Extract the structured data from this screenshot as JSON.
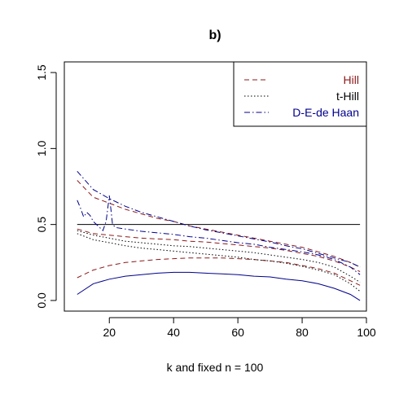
{
  "chart_data": {
    "type": "line",
    "title": "b)",
    "xlabel": "k and fixed n = 100",
    "ylabel": "",
    "xlim": [
      6,
      100
    ],
    "ylim": [
      -0.07,
      1.57
    ],
    "xticks": [
      20,
      40,
      60,
      80,
      100
    ],
    "xtick_labels": [
      "20",
      "40",
      "60",
      "80",
      "100"
    ],
    "yticks": [
      0.0,
      0.5,
      1.0,
      1.5
    ],
    "ytick_labels": [
      "0.0",
      "0.5",
      "1.0",
      "1.5"
    ],
    "grid": false,
    "legend_position": "top-right",
    "reference_line": {
      "y": 0.5,
      "x_from": 10,
      "x_to": 98
    },
    "series": [
      {
        "name": "Hill",
        "color": "#8b1a1a",
        "dash": "dashed",
        "legend_text_color": "#8b1a1a",
        "show_in_legend": true,
        "x": [
          10,
          15,
          20,
          25,
          30,
          35,
          40,
          45,
          50,
          55,
          60,
          65,
          70,
          75,
          80,
          85,
          90,
          95,
          98
        ],
        "y": [
          0.79,
          0.68,
          0.64,
          0.6,
          0.57,
          0.54,
          0.52,
          0.49,
          0.47,
          0.45,
          0.43,
          0.41,
          0.39,
          0.37,
          0.35,
          0.32,
          0.29,
          0.25,
          0.22
        ]
      },
      {
        "name": "Hill (lower band)",
        "color": "#8b1a1a",
        "dash": "dashed",
        "show_in_legend": false,
        "x": [
          10,
          15,
          20,
          25,
          30,
          35,
          40,
          45,
          50,
          55,
          60,
          65,
          70,
          75,
          80,
          85,
          90,
          95,
          98
        ],
        "y": [
          0.15,
          0.2,
          0.23,
          0.25,
          0.26,
          0.27,
          0.275,
          0.28,
          0.28,
          0.28,
          0.275,
          0.27,
          0.26,
          0.25,
          0.23,
          0.21,
          0.18,
          0.13,
          0.1
        ]
      },
      {
        "name": "Hill (mean)",
        "color": "#8b1a1a",
        "dash": "dashed",
        "show_in_legend": false,
        "x": [
          10,
          15,
          20,
          25,
          30,
          35,
          40,
          45,
          50,
          55,
          60,
          65,
          70,
          75,
          80,
          85,
          90,
          95,
          98
        ],
        "y": [
          0.47,
          0.44,
          0.43,
          0.42,
          0.41,
          0.405,
          0.4,
          0.39,
          0.385,
          0.375,
          0.365,
          0.355,
          0.345,
          0.33,
          0.31,
          0.29,
          0.26,
          0.22,
          0.19
        ]
      },
      {
        "name": "t-Hill",
        "color": "#000000",
        "dash": "dotted",
        "legend_text_color": "#000000",
        "show_in_legend": true,
        "x": [
          10,
          15,
          20,
          25,
          30,
          35,
          40,
          45,
          50,
          55,
          60,
          65,
          70,
          75,
          80,
          85,
          90,
          95,
          98
        ],
        "y": [
          0.46,
          0.43,
          0.41,
          0.39,
          0.38,
          0.37,
          0.36,
          0.355,
          0.345,
          0.335,
          0.325,
          0.315,
          0.3,
          0.285,
          0.27,
          0.25,
          0.22,
          0.16,
          0.12
        ]
      },
      {
        "name": "t-Hill (lower)",
        "color": "#000000",
        "dash": "dotted",
        "show_in_legend": false,
        "x": [
          10,
          15,
          20,
          25,
          30,
          35,
          40,
          45,
          50,
          55,
          60,
          65,
          70,
          75,
          80,
          85,
          90,
          95,
          98
        ],
        "y": [
          0.44,
          0.4,
          0.38,
          0.36,
          0.345,
          0.335,
          0.325,
          0.315,
          0.305,
          0.295,
          0.285,
          0.27,
          0.26,
          0.245,
          0.225,
          0.2,
          0.17,
          0.11,
          0.06
        ]
      },
      {
        "name": "D-E-de Haan",
        "color": "#00008b",
        "dash": "dashdot",
        "legend_text_color": "#00008b",
        "show_in_legend": true,
        "x": [
          10,
          11,
          12,
          13,
          14,
          15,
          16,
          17,
          18,
          19,
          20,
          20.5,
          21,
          22,
          25,
          30,
          35,
          40,
          45,
          50,
          55,
          60,
          65,
          70,
          75,
          80,
          85,
          90,
          95,
          98
        ],
        "y": [
          0.66,
          0.61,
          0.55,
          0.58,
          0.56,
          0.52,
          0.5,
          0.48,
          0.46,
          0.52,
          0.69,
          0.6,
          0.5,
          0.48,
          0.47,
          0.455,
          0.445,
          0.435,
          0.42,
          0.41,
          0.395,
          0.38,
          0.37,
          0.35,
          0.335,
          0.32,
          0.3,
          0.27,
          0.22,
          0.17
        ]
      },
      {
        "name": "D-E-de Haan (upper)",
        "color": "#00008b",
        "dash": "dashdot",
        "show_in_legend": false,
        "x": [
          10,
          15,
          20,
          25,
          30,
          35,
          40,
          45,
          50,
          55,
          60,
          65,
          70,
          75,
          80,
          85,
          90,
          95,
          98
        ],
        "y": [
          0.85,
          0.73,
          0.67,
          0.62,
          0.58,
          0.55,
          0.52,
          0.49,
          0.465,
          0.445,
          0.425,
          0.405,
          0.385,
          0.36,
          0.34,
          0.31,
          0.28,
          0.25,
          0.22
        ]
      },
      {
        "name": "D-E-de Haan (lower)",
        "color": "#00008b",
        "dash": "solid",
        "show_in_legend": false,
        "x": [
          10,
          15,
          20,
          25,
          30,
          35,
          40,
          45,
          50,
          55,
          60,
          65,
          70,
          75,
          80,
          85,
          90,
          95,
          98
        ],
        "y": [
          0.04,
          0.11,
          0.14,
          0.16,
          0.17,
          0.18,
          0.185,
          0.185,
          0.18,
          0.175,
          0.17,
          0.16,
          0.155,
          0.14,
          0.13,
          0.11,
          0.08,
          0.04,
          0.0
        ]
      }
    ]
  }
}
